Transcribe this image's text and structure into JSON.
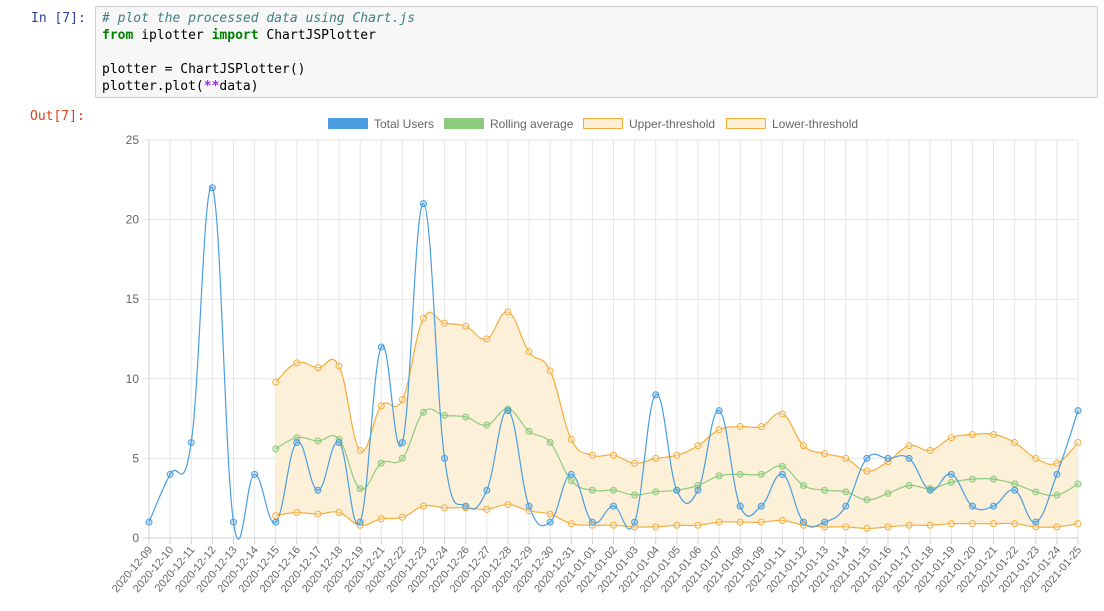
{
  "notebook": {
    "in_prompt": "In [7]:",
    "out_prompt": "Out[7]:",
    "code": {
      "comment": "# plot the processed data using Chart.js",
      "kw_from": "from",
      "module": " iplotter ",
      "kw_import": "import",
      "imported": " ChartJSPlotter",
      "line3": "plotter = ChartJSPlotter()",
      "line4_pre": "plotter.plot(",
      "line4_op": "**",
      "line4_post": "data)"
    }
  },
  "chart_data": {
    "type": "line",
    "categories": [
      "2020-12-09",
      "2020-12-10",
      "2020-12-11",
      "2020-12-12",
      "2020-12-13",
      "2020-12-14",
      "2020-12-15",
      "2020-12-16",
      "2020-12-17",
      "2020-12-18",
      "2020-12-19",
      "2020-12-21",
      "2020-12-22",
      "2020-12-23",
      "2020-12-24",
      "2020-12-26",
      "2020-12-27",
      "2020-12-28",
      "2020-12-29",
      "2020-12-30",
      "2020-12-31",
      "2021-01-01",
      "2021-01-02",
      "2021-01-03",
      "2021-01-04",
      "2021-01-05",
      "2021-01-06",
      "2021-01-07",
      "2021-01-08",
      "2021-01-09",
      "2021-01-11",
      "2021-01-12",
      "2021-01-13",
      "2021-01-14",
      "2021-01-15",
      "2021-01-16",
      "2021-01-17",
      "2021-01-18",
      "2021-01-19",
      "2021-01-20",
      "2021-01-21",
      "2021-01-22",
      "2021-01-23",
      "2021-01-24",
      "2021-01-25"
    ],
    "ylim": [
      0,
      25
    ],
    "yticks": [
      0,
      5,
      10,
      15,
      20,
      25
    ],
    "legend_position": "top",
    "grid": true,
    "series": [
      {
        "name": "Total Users",
        "color": "#4a9ee0",
        "fill": "#4a9ee0",
        "values": [
          1,
          4,
          6,
          22,
          1,
          4,
          1,
          6,
          3,
          6,
          1,
          12,
          6,
          21,
          5,
          2,
          3,
          8,
          2,
          1,
          4,
          1,
          2,
          1,
          9,
          3,
          3,
          8,
          2,
          2,
          4,
          1,
          1,
          2,
          5,
          5,
          5,
          3,
          4,
          2,
          2,
          3,
          1,
          4,
          8
        ]
      },
      {
        "name": "Rolling average",
        "color": "#8dcb7f",
        "fill": "#8dcb7f",
        "values": [
          null,
          null,
          null,
          null,
          null,
          null,
          5.6,
          6.3,
          6.1,
          6.2,
          3.1,
          4.7,
          5.0,
          7.9,
          7.7,
          7.6,
          7.1,
          8.1,
          6.7,
          6.0,
          3.6,
          3.0,
          3.0,
          2.7,
          2.9,
          3.0,
          3.3,
          3.9,
          4.0,
          4.0,
          4.5,
          3.3,
          3.0,
          2.9,
          2.4,
          2.8,
          3.3,
          3.1,
          3.5,
          3.7,
          3.7,
          3.4,
          2.9,
          2.7,
          3.4
        ]
      },
      {
        "name": "Upper-threshold",
        "color": "#f4ad3c",
        "fill": "#fdf0d8",
        "values": [
          null,
          null,
          null,
          null,
          null,
          null,
          9.8,
          11.0,
          10.7,
          10.8,
          5.5,
          8.3,
          8.7,
          13.8,
          13.5,
          13.3,
          12.5,
          14.2,
          11.7,
          10.5,
          6.2,
          5.2,
          5.2,
          4.7,
          5.0,
          5.2,
          5.8,
          6.8,
          7.0,
          7.0,
          7.8,
          5.8,
          5.3,
          5.0,
          4.2,
          4.8,
          5.8,
          5.5,
          6.3,
          6.5,
          6.5,
          6.0,
          5.0,
          4.7,
          6.0
        ]
      },
      {
        "name": "Lower-threshold",
        "color": "#f4ad3c",
        "fill": "#fdf0d8",
        "values": [
          null,
          null,
          null,
          null,
          null,
          null,
          1.4,
          1.6,
          1.5,
          1.6,
          0.8,
          1.2,
          1.3,
          2.0,
          1.9,
          1.9,
          1.8,
          2.1,
          1.7,
          1.5,
          0.9,
          0.8,
          0.8,
          0.7,
          0.7,
          0.8,
          0.8,
          1.0,
          1.0,
          1.0,
          1.1,
          0.8,
          0.7,
          0.7,
          0.6,
          0.7,
          0.8,
          0.8,
          0.9,
          0.9,
          0.9,
          0.9,
          0.7,
          0.7,
          0.9
        ]
      }
    ]
  }
}
